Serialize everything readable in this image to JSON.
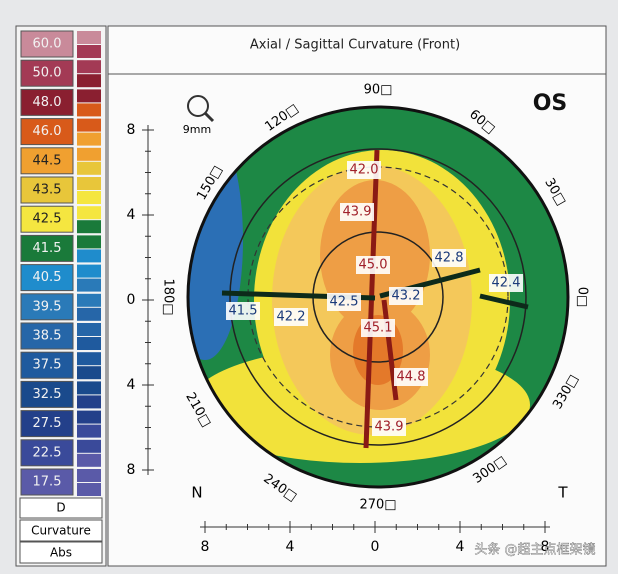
{
  "scale": {
    "labels": [
      "60.0",
      "50.0",
      "48.0",
      "46.0",
      "44.5",
      "43.5",
      "42.5",
      "41.5",
      "40.5",
      "39.5",
      "38.5",
      "37.5",
      "32.5",
      "27.5",
      "22.5",
      "17.5"
    ],
    "unit": "D",
    "type": "Curvature",
    "mode": "Abs"
  },
  "map": {
    "title": "Axial / Sagittal Curvature (Front)",
    "eye": "OS",
    "zoom": "9mm",
    "y_axis": [
      "8",
      "4",
      "0",
      "4",
      "8"
    ],
    "x_axis": [
      "8",
      "4",
      "0",
      "4",
      "8"
    ],
    "angles": [
      "90□",
      "60□",
      "30□",
      "0□",
      "330□",
      "300□",
      "270□",
      "240□",
      "210□",
      "180□",
      "150□",
      "120□"
    ],
    "nasal": "N",
    "temporal": "T",
    "readings": [
      "42.0",
      "43.9",
      "45.0",
      "45.1",
      "44.8",
      "43.9",
      "41.5",
      "42.2",
      "42.5",
      "43.2",
      "42.8",
      "42.4"
    ]
  },
  "watermark": "头条 @超主点框架镜"
}
